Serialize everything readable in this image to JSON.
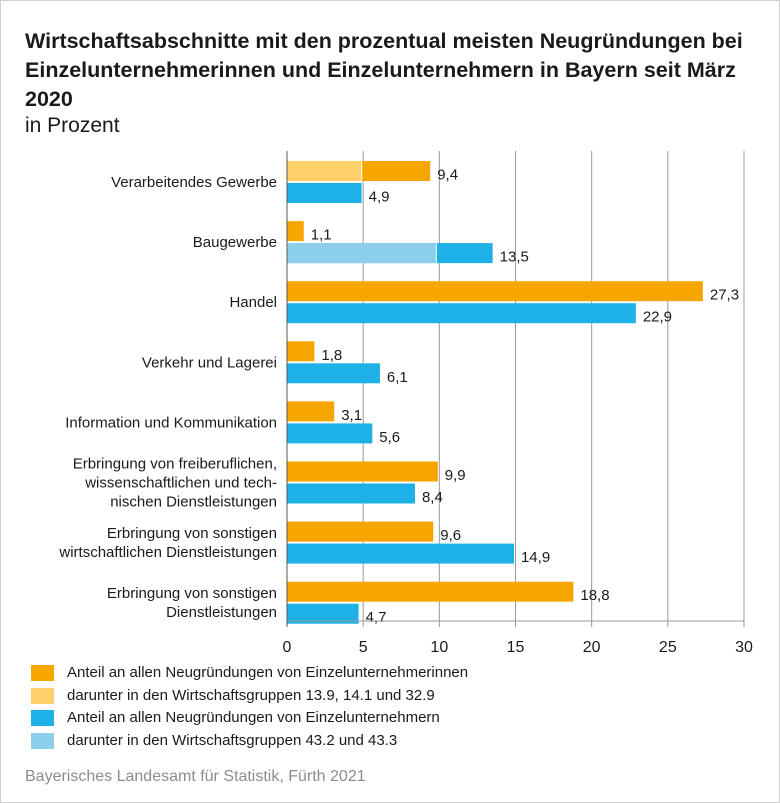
{
  "header": {
    "title": "Wirtschaftsabschnitte mit den prozentual meisten Neugründungen bei Einzelunternehmerinnen und Einzelunternehmern in Bayern seit März 2020",
    "subtitle": "in Prozent"
  },
  "colors": {
    "women": "#f7a600",
    "women_sub": "#fdd06a",
    "men": "#1eb1e7",
    "men_sub": "#8ccfec",
    "grid": "#9a9a9a"
  },
  "chart_data": {
    "type": "bar",
    "orientation": "horizontal",
    "title": "Wirtschaftsabschnitte mit den prozentual meisten Neugründungen bei Einzelunternehmerinnen und Einzelunternehmern in Bayern seit März 2020",
    "subtitle": "in Prozent",
    "categories": [
      "Verarbeitendes Gewerbe",
      "Baugewerbe",
      "Handel",
      "Verkehr und Lagerei",
      "Information und Kommunikation",
      "Erbringung von freiberuflichen, wissenschaftlichen und technischen Dienstleistungen",
      "Erbringung von sonstigen wirtschaftlichen Dienstleistungen",
      "Erbringung von sonstigen Dienstleistungen"
    ],
    "category_label_lines": [
      [
        "Verarbeitendes Gewerbe"
      ],
      [
        "Baugewerbe"
      ],
      [
        "Handel"
      ],
      [
        "Verkehr und Lagerei"
      ],
      [
        "Information und Kommunikation"
      ],
      [
        "Erbringung von freiberuflichen,",
        "wissenschaftlichen und tech-",
        "nischen Dienstleistungen"
      ],
      [
        "Erbringung von sonstigen",
        "wirtschaftlichen Dienstleistungen"
      ],
      [
        "Erbringung von sonstigen",
        "Dienstleistungen"
      ]
    ],
    "series": [
      {
        "name": "Anteil an allen Neugründungen von Einzelunternehmerinnen",
        "values": [
          9.4,
          1.1,
          27.3,
          1.8,
          3.1,
          9.9,
          9.6,
          18.8
        ],
        "labels": [
          "9,4",
          "1,1",
          "27,3",
          "1,8",
          "3,1",
          "9,9",
          "9,6",
          "18,8"
        ],
        "subset": {
          "name": "darunter in den Wirtschaftsgruppen 13.9, 14.1 und 32.9",
          "values": [
            4.9,
            null,
            null,
            null,
            null,
            null,
            null,
            null
          ]
        }
      },
      {
        "name": "Anteil an allen Neugründungen von Einzelunternehmern",
        "values": [
          4.9,
          13.5,
          22.9,
          6.1,
          5.6,
          8.4,
          14.9,
          4.7
        ],
        "labels": [
          "4,9",
          "13,5",
          "22,9",
          "6,1",
          "5,6",
          "8,4",
          "14,9",
          "4,7"
        ],
        "subset": {
          "name": "darunter in den Wirtschaftsgruppen 43.2 und 43.3",
          "values": [
            null,
            9.8,
            null,
            null,
            null,
            null,
            null,
            null
          ]
        }
      }
    ],
    "xlim": [
      0,
      30
    ],
    "xticks": [
      0,
      5,
      10,
      15,
      20,
      25,
      30
    ],
    "grid": true
  },
  "legend": {
    "items": [
      {
        "label": "Anteil an allen Neugründungen von Einzelunternehmerinnen",
        "color": "#f7a600"
      },
      {
        "label": "darunter in den Wirtschaftsgruppen 13.9, 14.1 und 32.9",
        "color": "#fdd06a"
      },
      {
        "label": "Anteil an allen Neugründungen von Einzelunternehmern",
        "color": "#1eb1e7"
      },
      {
        "label": "darunter in den Wirtschaftsgruppen 43.2 und 43.3",
        "color": "#8ccfec"
      }
    ]
  },
  "source": "Bayerisches Landesamt für Statistik, Fürth 2021"
}
